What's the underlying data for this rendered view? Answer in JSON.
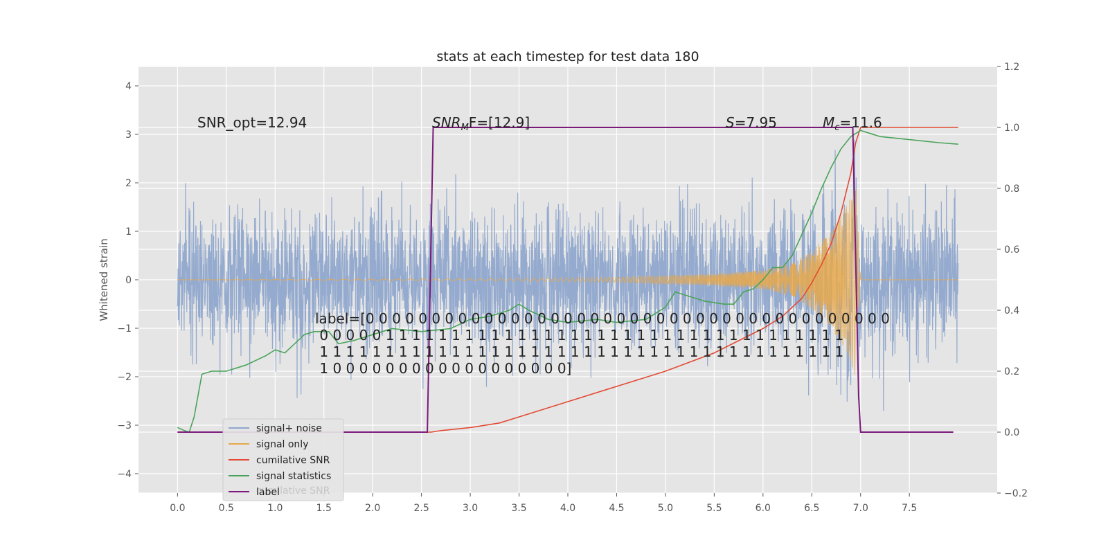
{
  "chart_data": {
    "type": "line",
    "title": "stats at each timestep for test data 180",
    "ylabel": "Whitened strain",
    "xlabel": "",
    "xlim": [
      -0.4,
      8.4
    ],
    "ylim": [
      -4.4,
      4.4
    ],
    "y2lim": [
      -0.2,
      1.2
    ],
    "xticks": [
      "0.0",
      "0.5",
      "1.0",
      "1.5",
      "2.0",
      "2.5",
      "3.0",
      "3.5",
      "4.0",
      "4.5",
      "5.0",
      "5.5",
      "6.0",
      "6.5",
      "7.0",
      "7.5"
    ],
    "yticks": [
      "4",
      "3",
      "2",
      "1",
      "0",
      "−1",
      "−2",
      "−3",
      "−4"
    ],
    "y2ticks": [
      "1.2",
      "1.0",
      "0.8",
      "0.6",
      "0.4",
      "0.2",
      "0.0",
      "−0.2"
    ],
    "grid": true,
    "legend_position": "lower-left",
    "colors": {
      "plot_bg": "#e5e5e5",
      "noise": "#8fa6cc",
      "signal": "#e6a84b",
      "cumulative": "#e24a33",
      "statistics": "#4aa35a",
      "label": "#7b1a7b"
    },
    "annotations": {
      "snr_opt": "SNR_opt=12.94",
      "snr_mf_prefix": "SNR",
      "snr_mf_sub": "M",
      "snr_mf_suffix": "F=[12.9]",
      "s_prefix": "S",
      "s_value": "=7.95",
      "mc_prefix": "M",
      "mc_sub": "c",
      "mc_value": "=11.6",
      "label_lines": [
        "label=[0 0 0 0 0 0 0 0 0 0 0 0 0 0 0 0 0 0 0 0 0 0 0 0 0 0 0 0 0 0 0 0 0 0 0 0 0 0 0 0",
        " 0 0 0 0 0 1 1 1 1 1 1 1 1 1 1 1 1 1 1 1 1 1 1 1 1 1 1 1 1 1 1 1 1 1 1 1 1 1 1 1",
        " 1 1 1 1 1 1 1 1 1 1 1 1 1 1 1 1 1 1 1 1 1 1 1 1 1 1 1 1 1 1 1 1 1 1 1 1 1 1 1 1",
        " 1 0 0 0 0 0 0 0 0 0 0 0 0 0 0 0 0 0 0]"
      ],
      "ghost_label": "cumilative SNR"
    },
    "legend": [
      {
        "name": "signal+ noise",
        "key": "noise"
      },
      {
        "name": "signal only",
        "key": "signal"
      },
      {
        "name": "cumilative SNR",
        "key": "cumulative"
      },
      {
        "name": "signal statistics",
        "key": "statistics"
      },
      {
        "name": "label",
        "key": "label"
      }
    ],
    "series": [
      {
        "name": "signal+ noise",
        "key": "noise",
        "axis": "left",
        "x_range": [
          0.0,
          8.0
        ],
        "spread": 0.72
      },
      {
        "name": "signal only",
        "key": "signal",
        "axis": "left",
        "x_range": [
          0.0,
          8.0
        ],
        "envelope_x": [
          0.0,
          3.0,
          4.5,
          5.5,
          6.0,
          6.3,
          6.5,
          6.7,
          6.85,
          6.95,
          7.0,
          8.0
        ],
        "envelope_amp": [
          0.0,
          0.02,
          0.05,
          0.12,
          0.2,
          0.35,
          0.6,
          1.0,
          1.5,
          2.0,
          0.0,
          0.0
        ]
      },
      {
        "name": "cumilative SNR",
        "key": "cumulative",
        "axis": "right",
        "x": [
          0.0,
          2.6,
          2.7,
          3.0,
          3.3,
          3.6,
          4.0,
          4.5,
          5.0,
          5.5,
          6.0,
          6.2,
          6.4,
          6.5,
          6.6,
          6.7,
          6.8,
          6.9,
          6.95,
          7.0,
          8.0
        ],
        "y": [
          0.0,
          0.0,
          0.005,
          0.015,
          0.03,
          0.06,
          0.1,
          0.15,
          0.2,
          0.26,
          0.34,
          0.38,
          0.44,
          0.49,
          0.55,
          0.62,
          0.72,
          0.85,
          0.95,
          1.0,
          1.0
        ]
      },
      {
        "name": "signal statistics",
        "key": "statistics",
        "axis": "right",
        "x": [
          0.0,
          0.07,
          0.12,
          0.17,
          0.25,
          0.35,
          0.5,
          0.7,
          0.9,
          1.0,
          1.1,
          1.3,
          1.4,
          1.55,
          1.65,
          1.8,
          2.0,
          2.2,
          2.5,
          2.8,
          3.0,
          3.2,
          3.4,
          3.5,
          3.6,
          3.8,
          4.0,
          4.3,
          4.5,
          4.8,
          5.0,
          5.1,
          5.2,
          5.4,
          5.6,
          5.7,
          5.8,
          5.9,
          6.0,
          6.1,
          6.2,
          6.3,
          6.4,
          6.5,
          6.6,
          6.7,
          6.8,
          6.9,
          7.0,
          7.1,
          7.2,
          7.5,
          7.8,
          8.0
        ],
        "y": [
          0.015,
          0.005,
          0.0,
          0.05,
          0.19,
          0.2,
          0.2,
          0.22,
          0.25,
          0.27,
          0.26,
          0.32,
          0.33,
          0.33,
          0.29,
          0.3,
          0.32,
          0.34,
          0.33,
          0.34,
          0.37,
          0.38,
          0.4,
          0.42,
          0.4,
          0.37,
          0.36,
          0.37,
          0.36,
          0.37,
          0.41,
          0.46,
          0.45,
          0.43,
          0.42,
          0.42,
          0.46,
          0.47,
          0.5,
          0.54,
          0.54,
          0.58,
          0.65,
          0.72,
          0.8,
          0.87,
          0.93,
          0.97,
          0.99,
          0.98,
          0.97,
          0.96,
          0.95,
          0.945
        ]
      },
      {
        "name": "label",
        "key": "label",
        "axis": "right",
        "x": [
          0.0,
          2.56,
          2.62,
          6.92,
          6.98,
          7.0,
          7.95
        ],
        "y": [
          0.0,
          0.0,
          1.0,
          1.0,
          0.12,
          0.0,
          0.0
        ]
      }
    ]
  }
}
